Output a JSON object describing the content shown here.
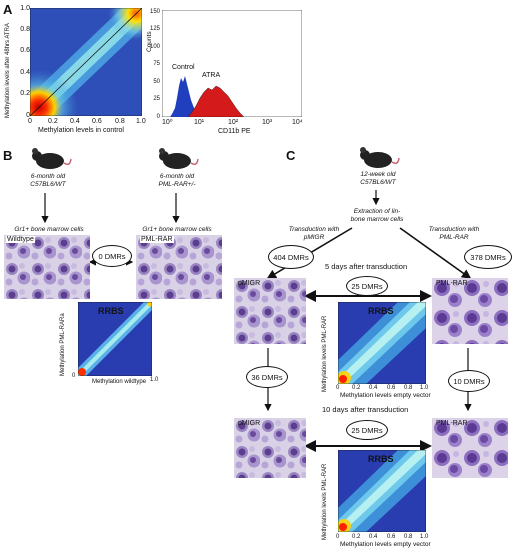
{
  "panelA": {
    "letter": "A",
    "heatmap": {
      "ylabel": "Methylation levels after 48hrs ATRA",
      "xlabel": "Methylation levels in control",
      "ticks": [
        "0",
        "0.2",
        "0.4",
        "0.6",
        "0.8",
        "1.0"
      ]
    },
    "histogram": {
      "ylabel": "Counts",
      "xlabel": "CD11b PE",
      "yticks": [
        "0",
        "25",
        "50",
        "75",
        "100",
        "125",
        "150"
      ],
      "xticks": [
        "10⁰",
        "10¹",
        "10²",
        "10³",
        "10⁴"
      ],
      "label_control": "Control",
      "label_atra": "ATRA",
      "color_control": "#1f3fbf",
      "color_atra": "#d41a1a"
    }
  },
  "panelB": {
    "letter": "B",
    "mouse1": "6-month old\nC57BL6/WT",
    "mouse2": "6-month old\nPML-RAR+/-",
    "cells1_caption": "Gr1+ bone marrow  cells",
    "cells2_caption": "Gr1+ bone marrow  cells",
    "img1_label": "Wildtype",
    "img2_label": "PML-RAR",
    "dmr": "0 DMRs",
    "rrbs": {
      "title": "RRBS",
      "ylabel": "Methylation PML-RARa",
      "xlabel": "Methylation wildtype",
      "tick0": "0",
      "tick1": "1.0"
    }
  },
  "panelC": {
    "letter": "C",
    "mouse": "12-week old\nC57BL6/WT",
    "extraction": "Extraction of lin-\nbone marrow cells",
    "transduction_left": "Transduction with\npMIGR",
    "transduction_right": "Transduction with\nPML-RAR",
    "dmr_left": "404 DMRs",
    "dmr_right": "378 DMRs",
    "day5": "5 days after transduction",
    "day10": "10 days after transduction",
    "dmr_25a": "25 DMRs",
    "dmr_25b": "25 DMRs",
    "dmr_36": "36 DMRs",
    "dmr_10": "10 DMRs",
    "img_pmigr": "pMIGR",
    "img_pmlrar": "PML-RAR",
    "img_pmigr2": "pMIGR",
    "img_pmlrar2": "PML-RAR",
    "rrbs_title": "RRBS",
    "rrbs_ylabel": "Methylation levels PML-RAR",
    "rrbs_xlabel": "Methylation levels empty vector",
    "ticks": [
      "0",
      "0.2",
      "0.4",
      "0.6",
      "0.8",
      "1.0"
    ]
  }
}
